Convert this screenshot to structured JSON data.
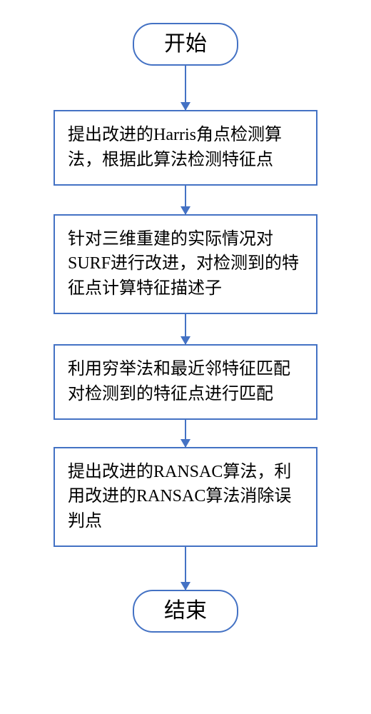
{
  "flowchart": {
    "type": "flowchart",
    "background_color": "#ffffff",
    "border_color": "#4472c4",
    "arrow_color": "#4472c4",
    "border_width": 2,
    "terminal_fontsize": 30,
    "process_fontsize": 24,
    "process_width": 370,
    "terminal_radius": 28,
    "nodes": {
      "start": {
        "type": "terminal",
        "label": "开始"
      },
      "step1": {
        "type": "process",
        "label": "提出改进的Harris角点检测算法，根据此算法检测特征点"
      },
      "step2": {
        "type": "process",
        "label": "针对三维重建的实际情况对SURF进行改进，对检测到的特征点计算特征描述子"
      },
      "step3": {
        "type": "process",
        "label": "利用穷举法和最近邻特征匹配对检测到的特征点进行匹配"
      },
      "step4": {
        "type": "process",
        "label": "提出改进的RANSAC算法，利用改进的RANSAC算法消除误判点"
      },
      "end": {
        "type": "terminal",
        "label": "结束"
      }
    },
    "arrow_heights": {
      "a1": 62,
      "a2": 40,
      "a3": 42,
      "a4": 38,
      "a5": 60
    },
    "edges": [
      {
        "from": "start",
        "to": "step1"
      },
      {
        "from": "step1",
        "to": "step2"
      },
      {
        "from": "step2",
        "to": "step3"
      },
      {
        "from": "step3",
        "to": "step4"
      },
      {
        "from": "step4",
        "to": "end"
      }
    ]
  }
}
